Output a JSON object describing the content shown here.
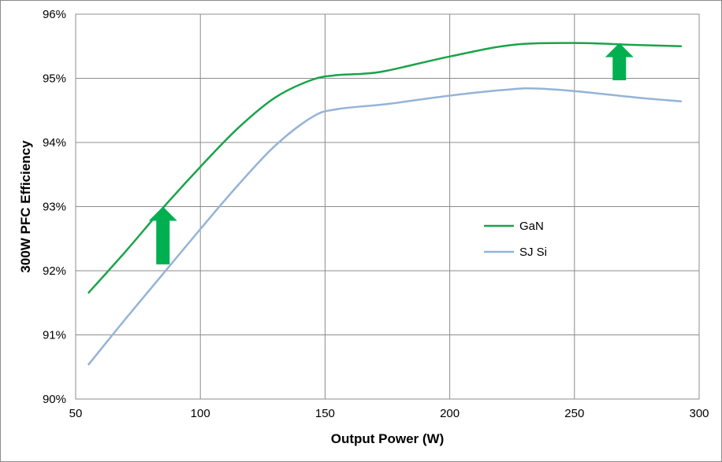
{
  "chart_data": {
    "type": "line",
    "xlabel": "Output Power (W)",
    "ylabel": "300W PFC Efficiency",
    "xlim": [
      50,
      300
    ],
    "ylim": [
      90,
      96
    ],
    "x_ticks": [
      "50",
      "100",
      "150",
      "200",
      "250",
      "300"
    ],
    "y_ticks": [
      "90%",
      "91%",
      "92%",
      "93%",
      "94%",
      "95%",
      "96%"
    ],
    "grid": true,
    "legend_position": "right-middle",
    "series": [
      {
        "name": "GaN",
        "color": "#1aa34a",
        "x": [
          55,
          70,
          85,
          100,
          115,
          130,
          145,
          155,
          165,
          175,
          200,
          225,
          250,
          275,
          293
        ],
        "y": [
          91.65,
          92.3,
          92.98,
          93.62,
          94.22,
          94.7,
          94.98,
          95.05,
          95.07,
          95.12,
          95.34,
          95.52,
          95.55,
          95.52,
          95.5
        ]
      },
      {
        "name": "SJ Si",
        "color": "#95b3d7",
        "x": [
          55,
          70,
          85,
          100,
          115,
          130,
          145,
          155,
          175,
          200,
          225,
          235,
          250,
          275,
          293
        ],
        "y": [
          90.53,
          91.25,
          91.95,
          92.65,
          93.33,
          93.95,
          94.4,
          94.52,
          94.6,
          94.73,
          94.83,
          94.84,
          94.8,
          94.7,
          94.64
        ]
      }
    ],
    "annotations": [
      {
        "shape": "up-arrow",
        "color": "#00b050",
        "x": 85,
        "y_from": 92.1,
        "y_to": 93.0
      },
      {
        "shape": "up-arrow",
        "color": "#00b050",
        "x": 268,
        "y_from": 94.97,
        "y_to": 95.55
      }
    ]
  }
}
